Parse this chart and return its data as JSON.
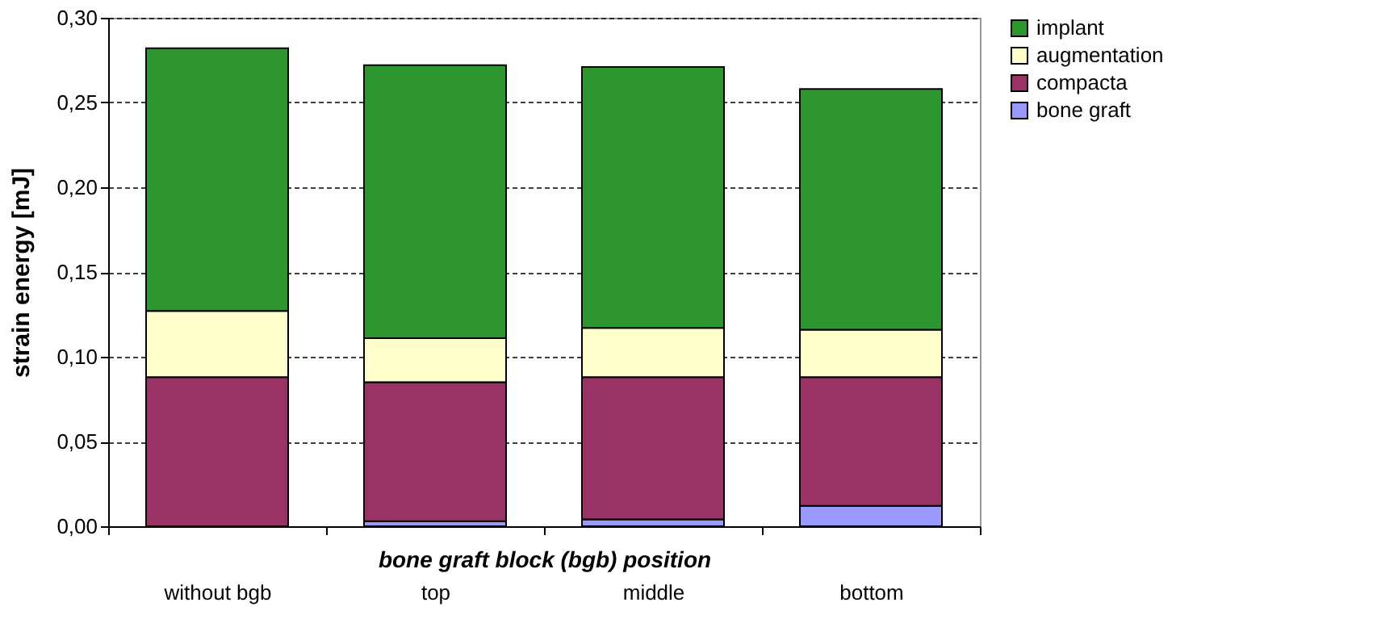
{
  "chart_data": {
    "type": "bar",
    "stacked": true,
    "xlabel": "bone graft block (bgb) position",
    "ylabel": "strain energy  [mJ]",
    "categories": [
      "without bgb",
      "top",
      "middle",
      "bottom"
    ],
    "series": [
      {
        "name": "bone graft",
        "color": "#9999ff",
        "values": [
          0,
          0.003,
          0.004,
          0.012
        ]
      },
      {
        "name": "compacta",
        "color": "#993366",
        "values": [
          0.088,
          0.082,
          0.084,
          0.076
        ]
      },
      {
        "name": "augmentation",
        "color": "#ffffcc",
        "values": [
          0.039,
          0.026,
          0.029,
          0.028
        ]
      },
      {
        "name": "implant",
        "color": "#2e962e",
        "values": [
          0.155,
          0.161,
          0.154,
          0.142
        ]
      }
    ],
    "ylim": [
      0,
      0.3
    ],
    "yticks": [
      {
        "value": 0,
        "label": "0,00"
      },
      {
        "value": 0.05,
        "label": "0,05"
      },
      {
        "value": 0.1,
        "label": "0,10"
      },
      {
        "value": 0.15,
        "label": "0,15"
      },
      {
        "value": 0.2,
        "label": "0,20"
      },
      {
        "value": 0.25,
        "label": "0,25"
      },
      {
        "value": 0.3,
        "label": "0,30"
      }
    ],
    "grid": "y",
    "legend": "right"
  }
}
